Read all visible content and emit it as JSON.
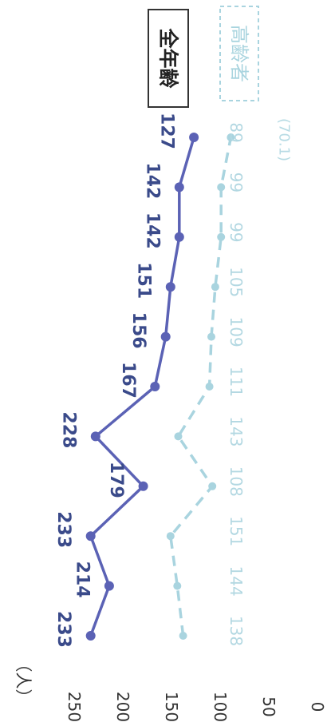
{
  "chart_data": {
    "type": "line",
    "orientation": "rotated-90-clockwise",
    "title": "",
    "unit_label": "（人）",
    "ylim": [
      0,
      250
    ],
    "y_ticks": [
      0,
      50,
      100,
      150,
      200,
      250
    ],
    "grid": false,
    "legend_placement": "top-right",
    "point_count": 11,
    "series": [
      {
        "name": "全年齢",
        "style": "solid",
        "color": "#5b62b5",
        "values": [
          233,
          214,
          233,
          179,
          228,
          167,
          156,
          151,
          142,
          142,
          127
        ],
        "value_labels": [
          "233",
          "214",
          "233",
          "179",
          "228",
          "167",
          "156",
          "151",
          "142",
          "142",
          "127"
        ]
      },
      {
        "name": "高齢者",
        "style": "dashed",
        "color": "#a9d4df",
        "values": [
          138,
          144,
          151,
          108,
          143,
          111,
          109,
          105,
          99,
          99,
          89
        ],
        "value_labels": [
          "138",
          "144",
          "151",
          "108",
          "143",
          "111",
          "109",
          "105",
          "99",
          "99",
          "89"
        ],
        "last_note": "(70.1)"
      }
    ]
  }
}
